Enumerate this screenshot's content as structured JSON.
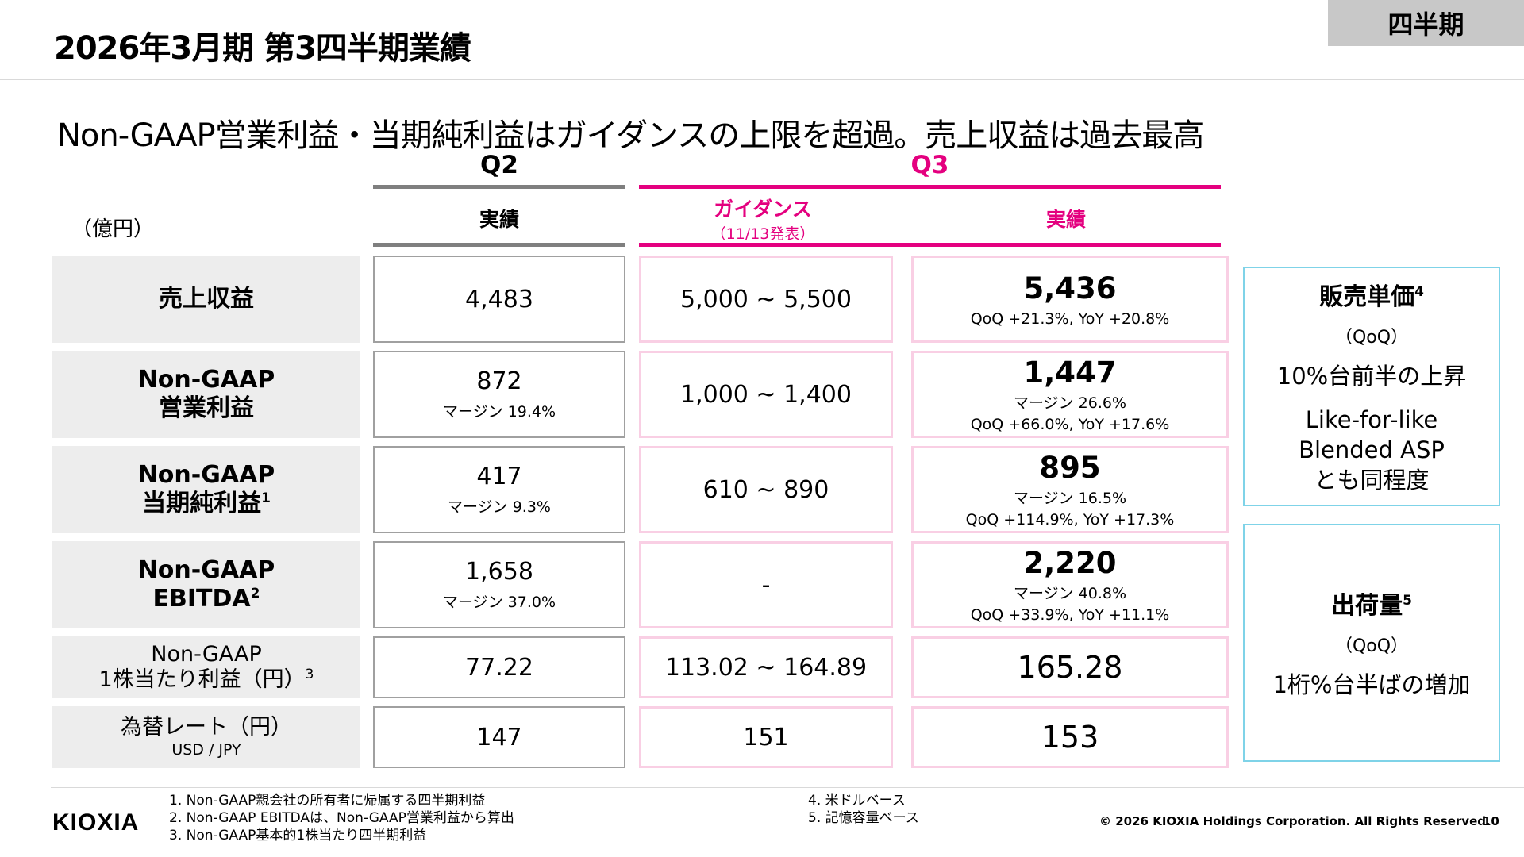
{
  "header": {
    "title": "2026年3月期 第3四半期業績",
    "tag": "四半期"
  },
  "headline": "Non-GAAP営業利益・当期純利益はガイダンスの上限を超過。売上収益は過去最高",
  "columns": {
    "q2": "Q2",
    "q3": "Q3",
    "q2_actual": "実績",
    "guidance": "ガイダンス",
    "guidance_date": "（11/13発表）",
    "q3_actual": "実績",
    "unit": "（億円）"
  },
  "rows": [
    {
      "label1": "売上収益",
      "label2": "",
      "sup": "",
      "q2": "4,483",
      "q2_margin": "",
      "guidance": "5,000 ~ 5,500",
      "q3": "5,436",
      "q3_margin": "",
      "q3_change": "QoQ +21.3%, YoY +20.8%"
    },
    {
      "label1": "Non-GAAP",
      "label2": "営業利益",
      "sup": "",
      "q2": "872",
      "q2_margin": "マージン 19.4%",
      "guidance": "1,000 ~ 1,400",
      "q3": "1,447",
      "q3_margin": "マージン 26.6%",
      "q3_change": "QoQ +66.0%, YoY +17.6%"
    },
    {
      "label1": "Non-GAAP",
      "label2": "当期純利益",
      "sup": "1",
      "q2": "417",
      "q2_margin": "マージン 9.3%",
      "guidance": "610 ~ 890",
      "q3": "895",
      "q3_margin": "マージン 16.5%",
      "q3_change": "QoQ +114.9%, YoY +17.3%"
    },
    {
      "label1": "Non-GAAP",
      "label2": "EBITDA",
      "sup": "2",
      "q2": "1,658",
      "q2_margin": "マージン 37.0%",
      "guidance": "-",
      "q3": "2,220",
      "q3_margin": "マージン 40.8%",
      "q3_change": "QoQ +33.9%, YoY +11.1%"
    },
    {
      "label1": "Non-GAAP",
      "label2": "1株当たり利益（円）",
      "sup": "3",
      "q2": "77.22",
      "q2_margin": "",
      "guidance": "113.02 ~ 164.89",
      "q3": "165.28",
      "q3_margin": "",
      "q3_change": ""
    },
    {
      "label1": "為替レート（円）",
      "label2": "USD / JPY",
      "sup": "",
      "q2": "147",
      "q2_margin": "",
      "guidance": "151",
      "q3": "153",
      "q3_margin": "",
      "q3_change": ""
    }
  ],
  "side": {
    "asp_title": "販売単価",
    "asp_sup": "4",
    "asp_qoq": "（QoQ）",
    "asp_value": "10%台前半の上昇",
    "asp_note1": "Like-for-like",
    "asp_note2": "Blended ASP",
    "asp_note3": "とも同程度",
    "ship_title": "出荷量",
    "ship_sup": "5",
    "ship_qoq": "（QoQ）",
    "ship_value": "1桁%台半ばの増加"
  },
  "footnotes": {
    "left": [
      "1. Non-GAAP親会社の所有者に帰属する四半期利益",
      "2. Non-GAAP EBITDAは、Non-GAAP営業利益から算出",
      "3. Non-GAAP基本的1株当たり四半期利益"
    ],
    "right": [
      "4. 米ドルベース",
      "5. 記憶容量ベース"
    ]
  },
  "footer": {
    "logo": "KIOXIA",
    "copyright": "© 2026 KIOXIA Holdings Corporation. All Rights Reserved.",
    "page": "10"
  },
  "colors": {
    "q3_accent": "#e4007f",
    "q2_line": "#7f7f7f",
    "side_border": "#7fd3e8",
    "pink_border": "#f9cfe4"
  }
}
